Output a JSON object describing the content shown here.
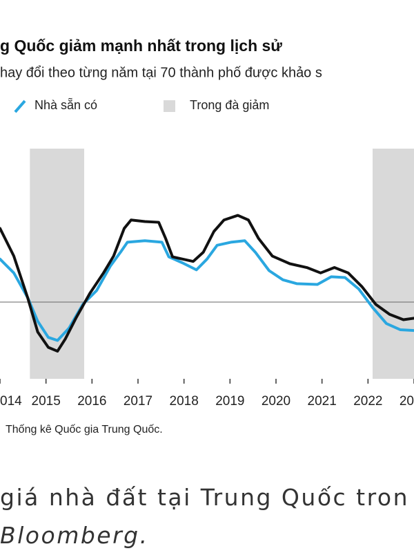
{
  "chart_data": {
    "type": "line",
    "title": "g Quốc giảm mạnh nhất trong lịch sử",
    "subtitle": "hay đổi theo từng năm tại 70 thành phố được khảo s",
    "shaded_name": "Trong đà giảm",
    "shaded_color": "#d9d9d9",
    "shaded": [
      [
        2014.65,
        2015.83
      ],
      [
        2022.1,
        2023
      ]
    ],
    "xlim": [
      2014,
      2023
    ],
    "ylim": [
      -10,
      20
    ],
    "xticks": [
      {
        "value": 2014,
        "label": "014"
      },
      2015,
      2016,
      2017,
      2018,
      2019,
      2020,
      2021,
      2022,
      {
        "value": 2023,
        "label": "20"
      }
    ],
    "series": [
      {
        "color": "#111111",
        "x": [
          2014.0,
          2014.3,
          2014.6,
          2014.82,
          2015.05,
          2015.25,
          2015.42,
          2015.65,
          2015.95,
          2016.25,
          2016.47,
          2016.7,
          2016.85,
          2017.15,
          2017.45,
          2017.6,
          2017.75,
          2017.97,
          2018.2,
          2018.42,
          2018.65,
          2018.87,
          2019.17,
          2019.4,
          2019.62,
          2019.92,
          2020.3,
          2020.67,
          2020.97,
          2021.27,
          2021.57,
          2021.87,
          2022.17,
          2022.47,
          2022.77,
          2023.0
        ],
        "values": [
          9.6,
          6.0,
          0.6,
          -3.9,
          -5.9,
          -6.4,
          -4.8,
          -2.1,
          1.1,
          3.8,
          6.0,
          9.6,
          10.7,
          10.5,
          10.4,
          8.3,
          5.9,
          5.6,
          5.3,
          6.5,
          9.2,
          10.7,
          11.3,
          10.7,
          8.3,
          6.0,
          5.0,
          4.5,
          3.8,
          4.5,
          3.8,
          2.0,
          -0.3,
          -1.6,
          -2.3,
          -2.1
        ]
      },
      {
        "name": "Nhà sẵn có",
        "color": "#2aa7e0",
        "x": [
          2014.0,
          2014.3,
          2014.6,
          2014.82,
          2015.05,
          2015.25,
          2015.5,
          2015.8,
          2016.1,
          2016.4,
          2016.62,
          2016.77,
          2017.15,
          2017.52,
          2017.67,
          2017.97,
          2018.27,
          2018.5,
          2018.72,
          2019.02,
          2019.32,
          2019.55,
          2019.85,
          2020.15,
          2020.45,
          2020.9,
          2021.2,
          2021.5,
          2021.8,
          2022.1,
          2022.4,
          2022.7,
          2023.0
        ],
        "values": [
          5.6,
          3.8,
          0.6,
          -2.5,
          -4.6,
          -5.0,
          -3.4,
          -0.3,
          1.5,
          4.7,
          6.5,
          7.8,
          8.0,
          7.8,
          5.9,
          5.1,
          4.2,
          5.6,
          7.4,
          7.8,
          8.0,
          6.5,
          4.1,
          2.9,
          2.4,
          2.3,
          3.3,
          3.2,
          1.7,
          -0.7,
          -2.8,
          -3.6,
          -3.7
        ]
      }
    ],
    "source": "Thống kê Quốc gia Trung Quốc.",
    "caption_line1": "giá nhà đất tại Trung Quốc tron",
    "caption_line2": "Bloomberg."
  }
}
